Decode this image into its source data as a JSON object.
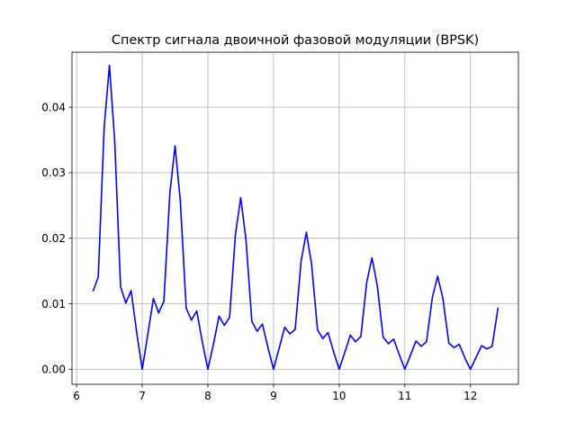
{
  "chart_data": {
    "type": "line",
    "title": "Спектр сигнала двоичной фазовой модуляции (BPSK)",
    "xlabel": "",
    "ylabel": "",
    "xlim": [
      5.93,
      12.73
    ],
    "ylim": [
      -0.0023,
      0.0484
    ],
    "xticks": [
      6,
      7,
      8,
      9,
      10,
      11,
      12
    ],
    "yticks": [
      0.0,
      0.01,
      0.02,
      0.03,
      0.04
    ],
    "ytick_labels": [
      "0.00",
      "0.01",
      "0.02",
      "0.03",
      "0.04"
    ],
    "grid": true,
    "legend": "none",
    "series": [
      {
        "color": "#0000ff",
        "x": [
          6.25,
          6.33,
          6.42,
          6.5,
          6.58,
          6.67,
          6.75,
          6.83,
          6.92,
          7.0,
          7.08,
          7.17,
          7.25,
          7.33,
          7.42,
          7.5,
          7.58,
          7.67,
          7.75,
          7.83,
          7.92,
          8.0,
          8.08,
          8.17,
          8.25,
          8.33,
          8.42,
          8.5,
          8.58,
          8.67,
          8.75,
          8.83,
          8.92,
          9.0,
          9.08,
          9.17,
          9.25,
          9.33,
          9.42,
          9.5,
          9.58,
          9.67,
          9.75,
          9.83,
          9.92,
          10.0,
          10.08,
          10.17,
          10.25,
          10.33,
          10.42,
          10.5,
          10.58,
          10.67,
          10.75,
          10.83,
          10.92,
          11.0,
          11.08,
          11.17,
          11.25,
          11.33,
          11.42,
          11.5,
          11.58,
          11.67,
          11.75,
          11.83,
          11.92,
          12.0,
          12.08,
          12.17,
          12.25,
          12.33,
          12.42
        ],
        "y": [
          0.0119,
          0.0141,
          0.0369,
          0.0464,
          0.035,
          0.0126,
          0.0101,
          0.012,
          0.0053,
          0.0,
          0.005,
          0.0108,
          0.0086,
          0.0104,
          0.0268,
          0.0341,
          0.0257,
          0.0093,
          0.0075,
          0.0089,
          0.0039,
          0.0,
          0.0036,
          0.0081,
          0.0067,
          0.0079,
          0.0206,
          0.0262,
          0.0198,
          0.0073,
          0.0058,
          0.0069,
          0.0031,
          0.0,
          0.003,
          0.0064,
          0.0054,
          0.0061,
          0.0165,
          0.0209,
          0.016,
          0.006,
          0.0047,
          0.0056,
          0.0025,
          0.0,
          0.0024,
          0.0052,
          0.0042,
          0.005,
          0.0133,
          0.017,
          0.0128,
          0.0049,
          0.0039,
          0.0046,
          0.0021,
          0.0,
          0.002,
          0.0043,
          0.0035,
          0.0042,
          0.011,
          0.0142,
          0.0108,
          0.004,
          0.0033,
          0.0038,
          0.0016,
          0.0,
          0.0017,
          0.0036,
          0.0031,
          0.0035,
          0.0094
        ]
      }
    ]
  }
}
